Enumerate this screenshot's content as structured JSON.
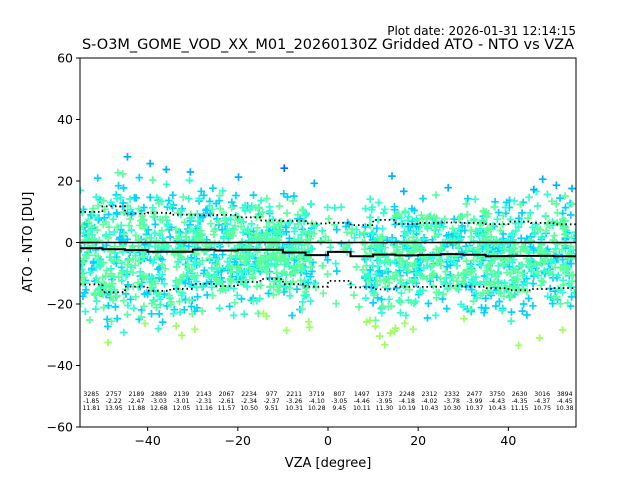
{
  "chart_data": {
    "type": "scatter",
    "title": "S-O3M_GOME_VOD_XX_M01_20260130Z Gridded ATO - NTO vs VZA",
    "plot_date": "Plot date: 2026-01-31 12:14:15",
    "xlabel": "VZA [degree]",
    "ylabel": "ATO - NTO [DU]",
    "xlim": [
      -55,
      55
    ],
    "ylim": [
      -60,
      60
    ],
    "xticks": [
      -40,
      -20,
      0,
      20,
      40
    ],
    "yticks": [
      -60,
      -40,
      -20,
      0,
      20,
      40,
      60
    ],
    "bins": [
      {
        "center": -52.5,
        "count": "3285",
        "mean": "-1.85",
        "std": "11.81"
      },
      {
        "center": -47.5,
        "count": "2757",
        "mean": "-2.22",
        "std": "13.95"
      },
      {
        "center": -42.5,
        "count": "2189",
        "mean": "-2.47",
        "std": "11.88"
      },
      {
        "center": -37.5,
        "count": "2889",
        "mean": "-3.03",
        "std": "12.68"
      },
      {
        "center": -32.5,
        "count": "2139",
        "mean": "-3.01",
        "std": "12.05"
      },
      {
        "center": -27.5,
        "count": "2143",
        "mean": "-2.31",
        "std": "11.16"
      },
      {
        "center": -22.5,
        "count": "2067",
        "mean": "-2.61",
        "std": "11.57"
      },
      {
        "center": -17.5,
        "count": "2234",
        "mean": "-2.34",
        "std": "10.50"
      },
      {
        "center": -12.5,
        "count": "977",
        "mean": "-2.37",
        "std": "9.51"
      },
      {
        "center": -7.5,
        "count": "2211",
        "mean": "-3.26",
        "std": "10.31"
      },
      {
        "center": -2.5,
        "count": "3719",
        "mean": "-4.10",
        "std": "10.28"
      },
      {
        "center": 2.5,
        "count": "807",
        "mean": "-3.05",
        "std": "9.45"
      },
      {
        "center": 7.5,
        "count": "1497",
        "mean": "-4.46",
        "std": "10.11"
      },
      {
        "center": 12.5,
        "count": "1373",
        "mean": "-3.95",
        "std": "11.30"
      },
      {
        "center": 17.5,
        "count": "2248",
        "mean": "-4.18",
        "std": "10.19"
      },
      {
        "center": 22.5,
        "count": "2312",
        "mean": "-4.02",
        "std": "10.43"
      },
      {
        "center": 27.5,
        "count": "2332",
        "mean": "-3.78",
        "std": "10.30"
      },
      {
        "center": 32.5,
        "count": "2477",
        "mean": "-3.99",
        "std": "10.37"
      },
      {
        "center": 37.5,
        "count": "3750",
        "mean": "-4.43",
        "std": "10.43"
      },
      {
        "center": 42.5,
        "count": "2630",
        "mean": "-4.35",
        "std": "11.15"
      },
      {
        "center": 47.5,
        "count": "3016",
        "mean": "-4.37",
        "std": "10.75"
      },
      {
        "center": 52.5,
        "count": "3894",
        "mean": "-4.45",
        "std": "10.38"
      }
    ],
    "reference_line": 0,
    "colors": {
      "scatter": [
        "#0000ff",
        "#0066ff",
        "#00b0ff",
        "#00d4ff",
        "#2fffd0",
        "#5dff9c",
        "#9cff5d",
        "#c8ff37",
        "#ffff00"
      ],
      "mean_line": "#000000",
      "std_line": "#000000"
    }
  }
}
